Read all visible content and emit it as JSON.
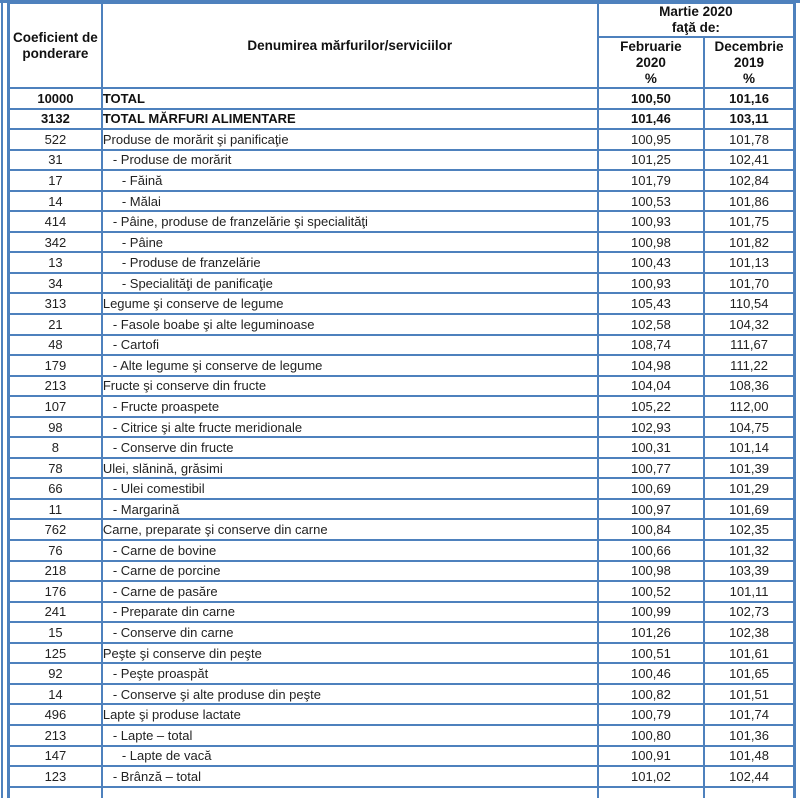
{
  "colors": {
    "border": "#4e81bd",
    "text": "#222222"
  },
  "table": {
    "columns": {
      "weight": "Coeficient de\nponderare",
      "name": "Denumirea mărfurilor/serviciilor",
      "group": "Martie 2020\nfaţă de:",
      "feb": "Februarie\n2020\n%",
      "dec": "Decembrie\n2019\n%"
    },
    "rows": [
      {
        "weight": "10000",
        "name": "TOTAL",
        "feb": "100,50",
        "dec": "101,16",
        "bold": true,
        "level": 0
      },
      {
        "weight": "3132",
        "name": "TOTAL MĂRFURI ALIMENTARE",
        "feb": "101,46",
        "dec": "103,11",
        "bold": true,
        "level": 0
      },
      {
        "weight": "522",
        "name": "Produse de morărit şi panificaţie",
        "feb": "100,95",
        "dec": "101,78",
        "bold": false,
        "level": 0
      },
      {
        "weight": "31",
        "name": "- Produse de morărit",
        "feb": "101,25",
        "dec": "102,41",
        "bold": false,
        "level": 1
      },
      {
        "weight": "17",
        "name": "- Făină",
        "feb": "101,79",
        "dec": "102,84",
        "bold": false,
        "level": 2
      },
      {
        "weight": "14",
        "name": "- Mălai",
        "feb": "100,53",
        "dec": "101,86",
        "bold": false,
        "level": 2
      },
      {
        "weight": "414",
        "name": "- Pâine, produse de franzelărie şi specialităţi",
        "feb": "100,93",
        "dec": "101,75",
        "bold": false,
        "level": 1
      },
      {
        "weight": "342",
        "name": "- Pâine",
        "feb": "100,98",
        "dec": "101,82",
        "bold": false,
        "level": 2
      },
      {
        "weight": "13",
        "name": "- Produse de franzelărie",
        "feb": "100,43",
        "dec": "101,13",
        "bold": false,
        "level": 2
      },
      {
        "weight": "34",
        "name": "- Specialităţi de panificaţie",
        "feb": "100,93",
        "dec": "101,70",
        "bold": false,
        "level": 2
      },
      {
        "weight": "313",
        "name": "Legume şi conserve de legume",
        "feb": "105,43",
        "dec": "110,54",
        "bold": false,
        "level": 0
      },
      {
        "weight": "21",
        "name": "- Fasole boabe şi alte leguminoase",
        "feb": "102,58",
        "dec": "104,32",
        "bold": false,
        "level": 1
      },
      {
        "weight": "48",
        "name": "- Cartofi",
        "feb": "108,74",
        "dec": "111,67",
        "bold": false,
        "level": 1
      },
      {
        "weight": "179",
        "name": "- Alte legume şi conserve de legume",
        "feb": "104,98",
        "dec": "111,22",
        "bold": false,
        "level": 1
      },
      {
        "weight": "213",
        "name": "Fructe şi conserve din fructe",
        "feb": "104,04",
        "dec": "108,36",
        "bold": false,
        "level": 0
      },
      {
        "weight": "107",
        "name": "- Fructe proaspete",
        "feb": "105,22",
        "dec": "112,00",
        "bold": false,
        "level": 1
      },
      {
        "weight": "98",
        "name": "- Citrice şi alte fructe meridionale",
        "feb": "102,93",
        "dec": "104,75",
        "bold": false,
        "level": 1
      },
      {
        "weight": "8",
        "name": "- Conserve din fructe",
        "feb": "100,31",
        "dec": "101,14",
        "bold": false,
        "level": 1
      },
      {
        "weight": "78",
        "name": "Ulei, slănină, grăsimi",
        "feb": "100,77",
        "dec": "101,39",
        "bold": false,
        "level": 0
      },
      {
        "weight": "66",
        "name": "- Ulei comestibil",
        "feb": "100,69",
        "dec": "101,29",
        "bold": false,
        "level": 1
      },
      {
        "weight": "11",
        "name": "- Margarină",
        "feb": "100,97",
        "dec": "101,69",
        "bold": false,
        "level": 1
      },
      {
        "weight": "762",
        "name": "Carne, preparate şi conserve din carne",
        "feb": "100,84",
        "dec": "102,35",
        "bold": false,
        "level": 0
      },
      {
        "weight": "76",
        "name": "- Carne de bovine",
        "feb": "100,66",
        "dec": "101,32",
        "bold": false,
        "level": 1
      },
      {
        "weight": "218",
        "name": "- Carne de porcine",
        "feb": "100,98",
        "dec": "103,39",
        "bold": false,
        "level": 1
      },
      {
        "weight": "176",
        "name": "- Carne de pasăre",
        "feb": "100,52",
        "dec": "101,11",
        "bold": false,
        "level": 1
      },
      {
        "weight": "241",
        "name": "- Preparate din carne",
        "feb": "100,99",
        "dec": "102,73",
        "bold": false,
        "level": 1
      },
      {
        "weight": "15",
        "name": "- Conserve din carne",
        "feb": "101,26",
        "dec": "102,38",
        "bold": false,
        "level": 1
      },
      {
        "weight": "125",
        "name": "Peşte şi conserve din peşte",
        "feb": "100,51",
        "dec": "101,61",
        "bold": false,
        "level": 0
      },
      {
        "weight": "92",
        "name": "- Peşte proaspăt",
        "feb": "100,46",
        "dec": "101,65",
        "bold": false,
        "level": 1
      },
      {
        "weight": "14",
        "name": "- Conserve şi alte produse din peşte",
        "feb": "100,82",
        "dec": "101,51",
        "bold": false,
        "level": 1
      },
      {
        "weight": "496",
        "name": "Lapte şi produse lactate",
        "feb": "100,79",
        "dec": "101,74",
        "bold": false,
        "level": 0
      },
      {
        "weight": "213",
        "name": "- Lapte – total",
        "feb": "100,80",
        "dec": "101,36",
        "bold": false,
        "level": 1
      },
      {
        "weight": "147",
        "name": "- Lapte de vacă",
        "feb": "100,91",
        "dec": "101,48",
        "bold": false,
        "level": 2
      },
      {
        "weight": "123",
        "name": "- Brânză – total",
        "feb": "101,02",
        "dec": "102,44",
        "bold": false,
        "level": 1
      }
    ]
  }
}
